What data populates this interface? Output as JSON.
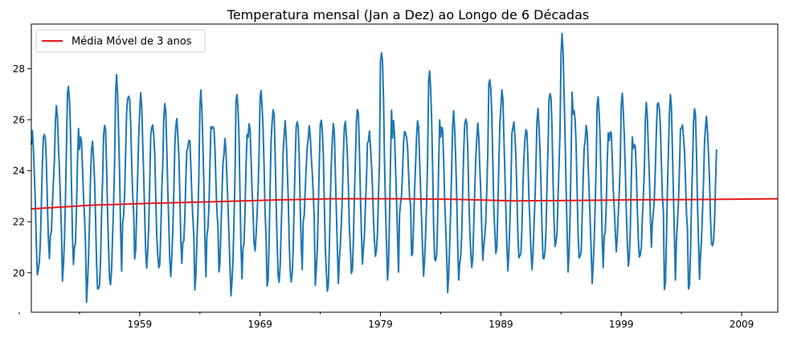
{
  "chart_data": {
    "type": "line",
    "title": "Temperatura mensal (Jan a Dez) ao Longo de 6 Décadas",
    "xlabel": "",
    "ylabel": "",
    "xlim": [
      1950,
      2012
    ],
    "ylim": [
      18.45,
      29.75
    ],
    "x_ticks": [
      1959,
      1969,
      1979,
      1989,
      1999,
      2009
    ],
    "y_ticks": [
      20,
      22,
      24,
      26,
      28
    ],
    "grid": false,
    "legend_position": "upper-left",
    "series": [
      {
        "name": "",
        "color": "#1f77b4",
        "x_start": "1950-01",
        "interval": "monthly",
        "annual_peaks": [
          25.4,
          25.6,
          26.4,
          27.4,
          25.3,
          25.1,
          25.9,
          27.6,
          27.1,
          26.9,
          25.9,
          26.6,
          26.0,
          25.3,
          27.0,
          25.9,
          25.1,
          27.1,
          25.8,
          27.1,
          26.5,
          25.8,
          26.1,
          25.6,
          26.1,
          25.8,
          25.9,
          26.5,
          25.4,
          28.8,
          25.8,
          25.6,
          25.9,
          27.9,
          25.8,
          26.2,
          26.2,
          25.7,
          27.7,
          27.1,
          25.9,
          25.7,
          26.3,
          27.2,
          29.2,
          26.5,
          25.7,
          26.9,
          25.6,
          26.9,
          25.2,
          26.5,
          26.8,
          26.9,
          25.8,
          26.5,
          26.0
        ],
        "annual_troughs": [
          19.7,
          20.0,
          21.5,
          19.7,
          20.9,
          19.0,
          19.2,
          19.7,
          21.8,
          20.6,
          20.2,
          20.1,
          20.0,
          21.0,
          19.5,
          21.3,
          20.1,
          19.1,
          20.9,
          21.0,
          19.3,
          19.8,
          19.5,
          22.1,
          19.5,
          19.2,
          20.6,
          19.8,
          21.1,
          20.5,
          19.8,
          22.3,
          20.6,
          20.0,
          20.3,
          19.4,
          20.2,
          20.3,
          21.0,
          20.7,
          20.2,
          20.5,
          20.3,
          20.4,
          21.3,
          20.0,
          20.6,
          19.7,
          21.3,
          21.0,
          20.1,
          20.8,
          21.9,
          19.3,
          21.4,
          19.2,
          20.9
        ]
      },
      {
        "name": "Média Móvel de 3 anos",
        "color": "#e31a1c",
        "x": [
          1950,
          1955,
          1960,
          1965,
          1970,
          1975,
          1980,
          1985,
          1990,
          1995,
          2000,
          2005,
          2012
        ],
        "values": [
          22.5,
          22.65,
          22.72,
          22.78,
          22.85,
          22.9,
          22.9,
          22.88,
          22.82,
          22.83,
          22.86,
          22.87,
          22.9
        ]
      }
    ]
  }
}
